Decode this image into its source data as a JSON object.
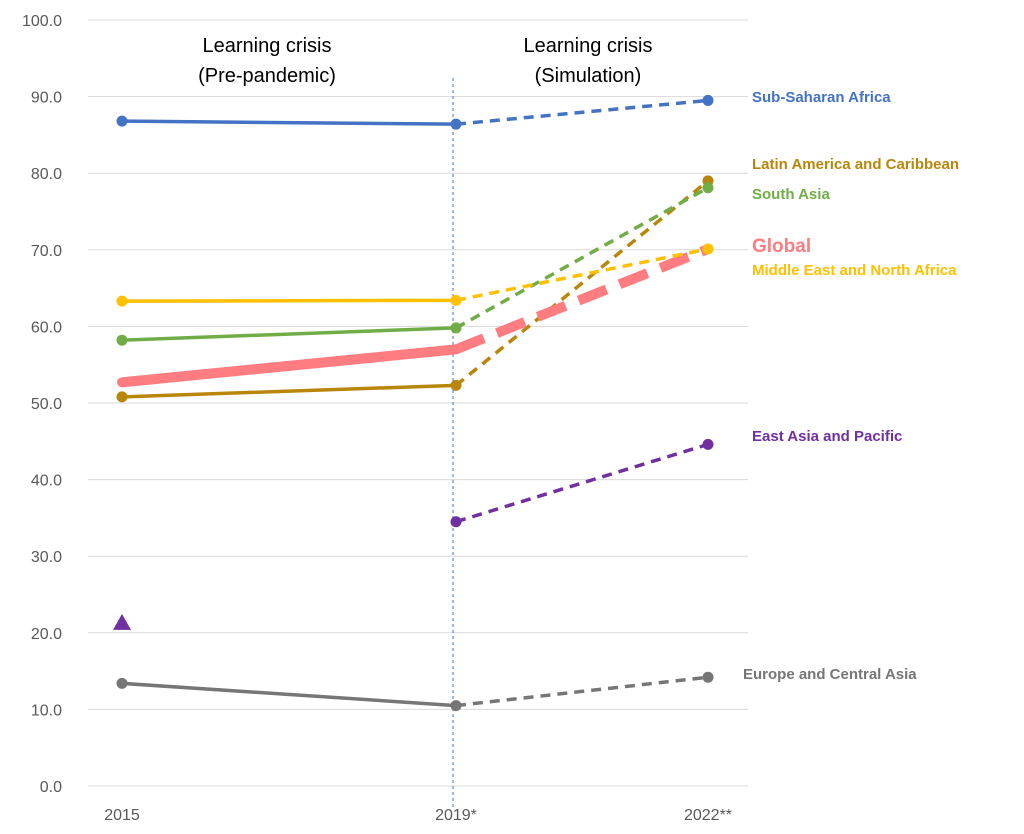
{
  "chart_data": {
    "type": "line",
    "x": [
      "2015",
      "2019*",
      "2022**"
    ],
    "ylim": [
      0,
      100
    ],
    "yticks": [
      "0.0",
      "10.0",
      "20.0",
      "30.0",
      "40.0",
      "50.0",
      "60.0",
      "70.0",
      "80.0",
      "90.0",
      "100.0"
    ],
    "grid": true,
    "sections": [
      {
        "line1": "Learning crisis",
        "line2": "(Pre-pandemic)"
      },
      {
        "line1": "Learning crisis",
        "line2": "(Simulation)"
      }
    ],
    "series": [
      {
        "name": "Sub-Saharan Africa",
        "color": "#4472C4",
        "values": [
          86.8,
          86.4,
          89.5
        ]
      },
      {
        "name": "Latin America and Caribbean",
        "color": "#B8860B",
        "values": [
          50.8,
          52.3,
          79.0
        ]
      },
      {
        "name": "South Asia",
        "color": "#70AD47",
        "values": [
          58.2,
          59.8,
          78.1
        ]
      },
      {
        "name": "Global",
        "color": "#FF7C80",
        "values": [
          52.7,
          57.0,
          70.1
        ],
        "thick": true
      },
      {
        "name": "Middle East and North Africa",
        "color": "#FFC000",
        "values": [
          63.3,
          63.4,
          70.1
        ]
      },
      {
        "name": "East Asia and Pacific",
        "color": "#7030A0",
        "values": [
          null,
          34.5,
          44.6
        ]
      },
      {
        "name": "Europe and Central Asia",
        "color": "#767676",
        "values": [
          13.4,
          10.5,
          14.2
        ]
      }
    ],
    "annotations": [
      {
        "type": "triangle-marker",
        "series": "East Asia and Pacific",
        "x": "2015",
        "y": 21.3,
        "color": "#7030A0"
      }
    ]
  }
}
